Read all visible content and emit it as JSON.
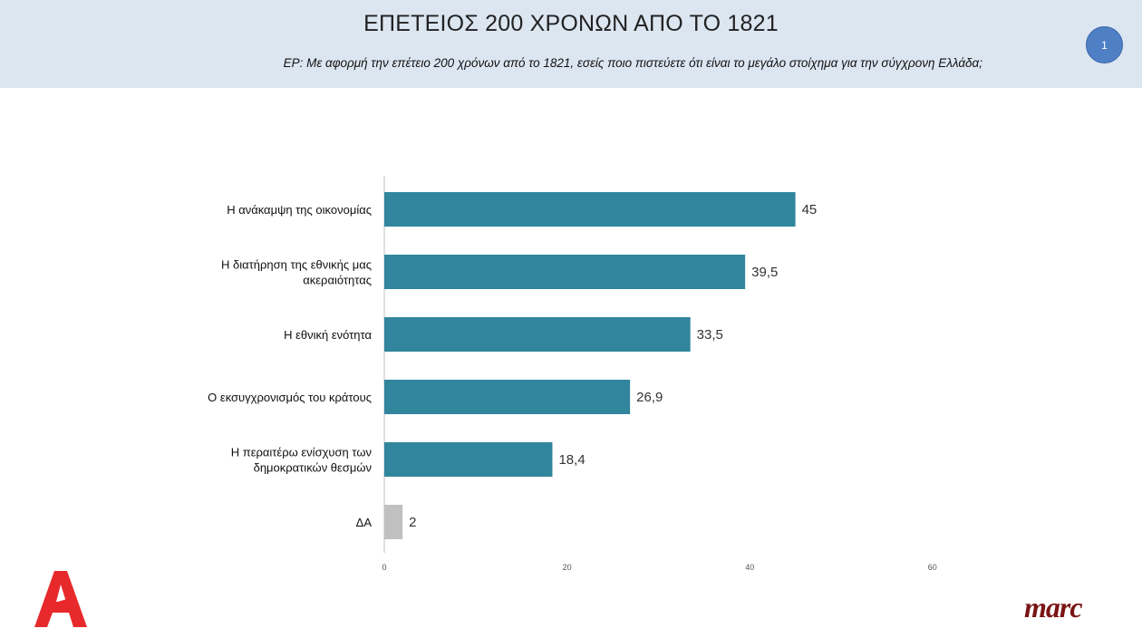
{
  "header": {
    "title": "ΕΠΕΤΕΙΟΣ 200 ΧΡΟΝΩΝ ΑΠΟ ΤΟ 1821",
    "question": "ΕΡ:  Με αφορμή την επέτειο 200 χρόνων από το 1821, εσείς ποιο πιστεύετε ότι είναι το μεγάλο στοίχημα για την σύγχρονη Ελλάδα;",
    "page_number": "1"
  },
  "logos": {
    "alpha": "Α",
    "marc": "marc"
  },
  "colors": {
    "header_bg": "#dce6f1",
    "bar": "#31859c",
    "bar_na": "#c0c0c0",
    "badge": "#4f7fc4",
    "alpha_red": "#e8292b",
    "marc_red": "#7a1414"
  },
  "chart_data": {
    "type": "bar",
    "orientation": "horizontal",
    "title": "",
    "categories": [
      [
        "Η ανάκαμψη της οικονομίας"
      ],
      [
        "Η διατήρηση της εθνικής μας",
        "ακεραιότητας"
      ],
      [
        "Η εθνική ενότητα"
      ],
      [
        "Ο εκσυγχρονισμός του κράτους"
      ],
      [
        "Η περαιτέρω ενίσχυση των",
        "δημοκρατικών θεσμών"
      ],
      [
        "ΔΑ"
      ]
    ],
    "values": [
      45,
      39.5,
      33.5,
      26.9,
      18.4,
      2
    ],
    "value_labels": [
      "45",
      "39,5",
      "33,5",
      "26,9",
      "18,4",
      "2"
    ],
    "bar_colors": [
      "#31859c",
      "#31859c",
      "#31859c",
      "#31859c",
      "#31859c",
      "#c0c0c0"
    ],
    "xlim": [
      0,
      60
    ],
    "xticks": [
      0,
      20,
      40,
      60
    ],
    "xtick_labels": [
      "0",
      "20",
      "40",
      "60"
    ],
    "grid": false,
    "legend": "none"
  }
}
